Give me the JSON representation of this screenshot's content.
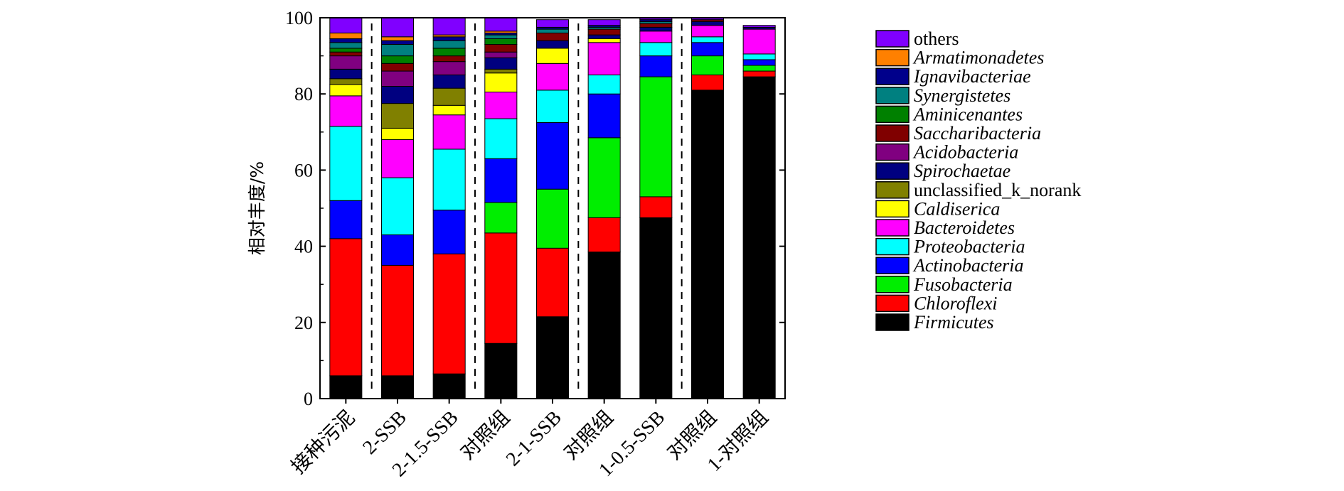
{
  "chart_data": {
    "type": "bar",
    "stacked": true,
    "ylabel": "相对丰度/%",
    "xlabel": "",
    "ylim": [
      0,
      100
    ],
    "yticks": [
      "0",
      "20",
      "40",
      "60",
      "80",
      "100"
    ],
    "grid": false,
    "legend_position": "right",
    "categories": [
      "接种污泥",
      "2-SSB",
      "2-1.5-SSB",
      "对照组",
      "2-1-SSB",
      "对照组",
      "1-0.5-SSB",
      "对照组",
      "1-对照组"
    ],
    "separators_after": [
      1,
      3,
      5,
      7
    ],
    "series": [
      {
        "name": "Firmicutes",
        "color": "#000000",
        "italic": true,
        "values": [
          6.0,
          6.0,
          6.5,
          14.5,
          21.5,
          38.5,
          47.5,
          81.0,
          84.5
        ]
      },
      {
        "name": "Chloroflexi",
        "color": "#ff0000",
        "italic": true,
        "values": [
          36.0,
          29.0,
          31.5,
          29.0,
          18.0,
          9.0,
          5.5,
          4.0,
          1.5
        ]
      },
      {
        "name": "Fusobacteria",
        "color": "#00ee00",
        "italic": true,
        "values": [
          0.0,
          0.0,
          0.0,
          8.0,
          15.5,
          21.0,
          31.5,
          5.0,
          1.5
        ]
      },
      {
        "name": "Actinobacteria",
        "color": "#0000ff",
        "italic": true,
        "values": [
          10.0,
          8.0,
          11.5,
          11.5,
          17.5,
          11.5,
          5.5,
          3.5,
          1.5
        ]
      },
      {
        "name": "Proteobacteria",
        "color": "#00ffff",
        "italic": true,
        "values": [
          19.5,
          15.0,
          16.0,
          10.5,
          8.5,
          5.0,
          3.5,
          1.5,
          1.5
        ]
      },
      {
        "name": "Bacteroidetes",
        "color": "#ff00ff",
        "italic": true,
        "values": [
          8.0,
          10.0,
          9.0,
          7.0,
          7.0,
          8.5,
          3.0,
          3.0,
          6.5
        ]
      },
      {
        "name": "Caldisericа",
        "color": "#ffff00",
        "italic": true,
        "values": [
          3.0,
          3.0,
          2.5,
          5.0,
          4.0,
          1.0,
          0.0,
          0.0,
          0.0
        ]
      },
      {
        "name": "unclassified_k_norank",
        "color": "#808000",
        "italic": false,
        "values": [
          1.5,
          6.5,
          4.5,
          1.0,
          0.0,
          0.0,
          0.0,
          0.0,
          0.0
        ]
      },
      {
        "name": "Spirochaetae",
        "color": "#000080",
        "italic": true,
        "values": [
          2.5,
          4.5,
          3.5,
          3.0,
          2.0,
          1.0,
          1.0,
          1.0,
          0.5
        ]
      },
      {
        "name": "Acidobacteria",
        "color": "#800080",
        "italic": true,
        "values": [
          3.5,
          4.0,
          3.5,
          1.5,
          0.0,
          0.0,
          0.0,
          0.0,
          0.0
        ]
      },
      {
        "name": "Saccharibacteria",
        "color": "#800000",
        "italic": true,
        "values": [
          1.0,
          2.0,
          1.5,
          2.0,
          2.0,
          1.5,
          1.0,
          0.5,
          0.0
        ]
      },
      {
        "name": "Aminicenantes",
        "color": "#008000",
        "italic": true,
        "values": [
          1.0,
          2.0,
          2.0,
          1.5,
          0.0,
          0.0,
          0.0,
          0.0,
          0.0
        ]
      },
      {
        "name": "Synergistetes",
        "color": "#008080",
        "italic": true,
        "values": [
          1.5,
          3.0,
          2.0,
          1.0,
          1.0,
          0.5,
          0.5,
          0.0,
          0.0
        ]
      },
      {
        "name": "Ignavibacteriae",
        "color": "#00008b",
        "italic": true,
        "values": [
          1.0,
          1.0,
          1.0,
          0.5,
          0.5,
          0.5,
          0.5,
          0.0,
          0.0
        ]
      },
      {
        "name": "Armatimonadetes",
        "color": "#ff8000",
        "italic": true,
        "values": [
          1.5,
          1.0,
          0.5,
          0.5,
          0.0,
          0.0,
          0.0,
          0.0,
          0.0
        ]
      },
      {
        "name": "others",
        "color": "#8000ff",
        "italic": false,
        "values": [
          4.0,
          5.0,
          4.5,
          3.5,
          2.0,
          1.5,
          0.5,
          0.5,
          0.5
        ]
      }
    ]
  }
}
